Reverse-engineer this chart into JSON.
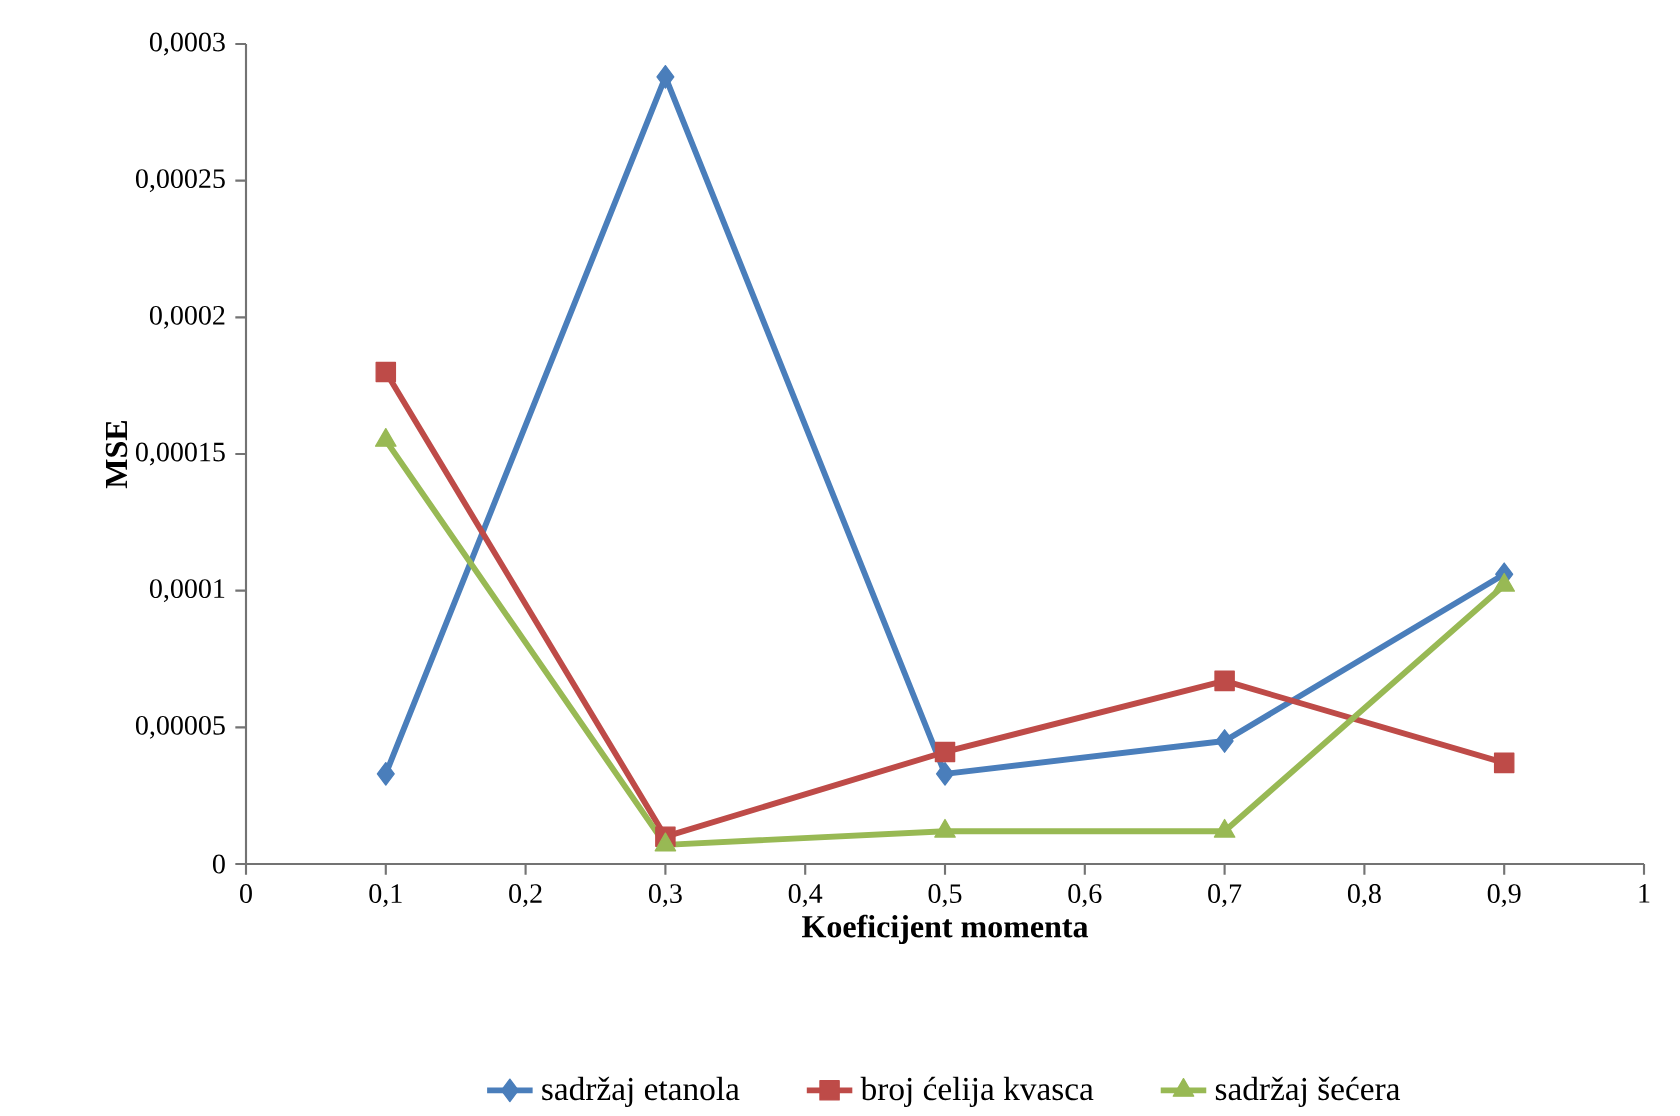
{
  "chart_data": {
    "type": "line",
    "xlabel": "Koeficijent momenta",
    "ylabel": "MSE",
    "x": [
      0.1,
      0.3,
      0.5,
      0.7,
      0.9
    ],
    "series": [
      {
        "name": "sadržaj etanola",
        "color": "#4a7ebb",
        "marker": "diamond",
        "values": [
          3.3e-05,
          0.000288,
          3.3e-05,
          4.5e-05,
          0.000106
        ]
      },
      {
        "name": "broj ćelija kvasca",
        "color": "#be4b48",
        "marker": "square",
        "values": [
          0.00018,
          1e-05,
          4.1e-05,
          6.7e-05,
          3.7e-05
        ]
      },
      {
        "name": "sadržaj šećera",
        "color": "#98b954",
        "marker": "triangle",
        "values": [
          0.000155,
          7e-06,
          1.2e-05,
          1.2e-05,
          0.000102
        ]
      }
    ],
    "xlim": [
      0,
      1
    ],
    "ylim": [
      0,
      0.0003
    ],
    "xticks": [
      0,
      {
        "value": 0.1,
        "label": "0,1"
      },
      {
        "value": 0.2,
        "label": "0,2"
      },
      {
        "value": 0.3,
        "label": "0,3"
      },
      {
        "value": 0.4,
        "label": "0,4"
      },
      {
        "value": 0.5,
        "label": "0,5"
      },
      {
        "value": 0.6,
        "label": "0,6"
      },
      {
        "value": 0.7,
        "label": "0,7"
      },
      {
        "value": 0.8,
        "label": "0,8"
      },
      {
        "value": 0.9,
        "label": "0,9"
      },
      1
    ],
    "yticks": [
      0,
      {
        "value": 5e-05,
        "label": "0,00005"
      },
      {
        "value": 0.0001,
        "label": "0,0001"
      },
      {
        "value": 0.00015,
        "label": "0,00015"
      },
      {
        "value": 0.0002,
        "label": "0,0002"
      },
      {
        "value": 0.00025,
        "label": "0,00025"
      },
      {
        "value": 0.0003,
        "label": "0,0003"
      }
    ],
    "legend": "bottom",
    "grid": false,
    "line_style": "solid"
  }
}
